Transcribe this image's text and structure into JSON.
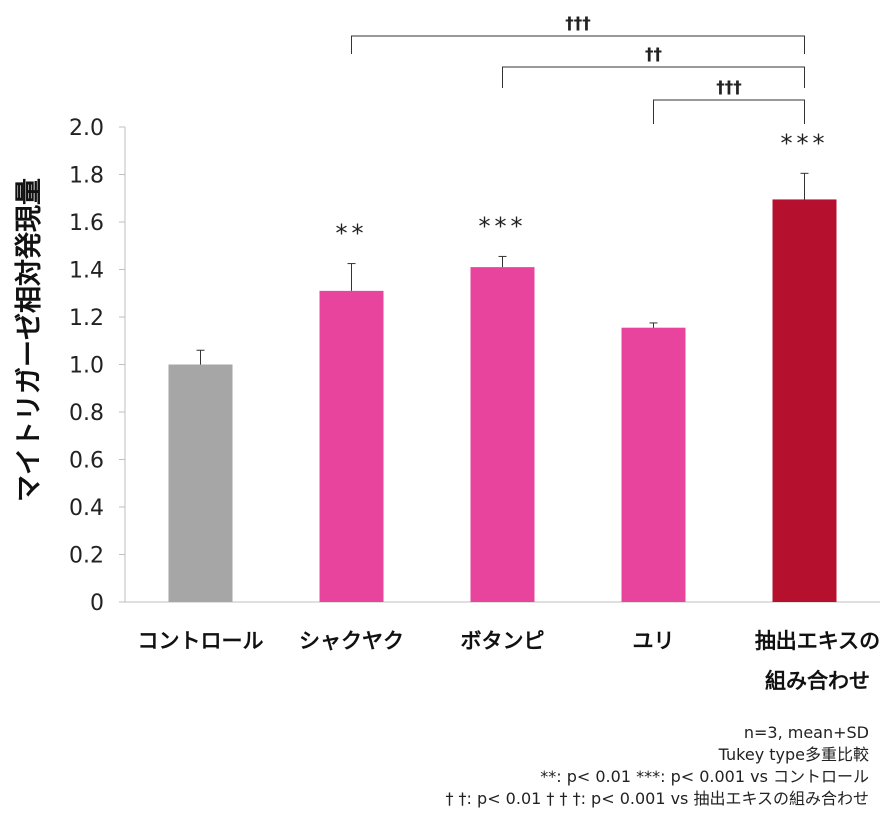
{
  "chart_data": {
    "type": "bar",
    "ylabel": "マイトリガーゼ相対発現量",
    "ylim": [
      0,
      2.0
    ],
    "yticks": [
      "0",
      "0.2",
      "0.4",
      "0.6",
      "0.8",
      "1.0",
      "1.2",
      "1.4",
      "1.6",
      "1.8",
      "2.0"
    ],
    "categories": [
      {
        "lines": [
          "コントロール"
        ]
      },
      {
        "lines": [
          "シャクヤク"
        ]
      },
      {
        "lines": [
          "ボタンピ"
        ]
      },
      {
        "lines": [
          "ユリ"
        ]
      },
      {
        "lines": [
          "抽出エキスの",
          "組み合わせ"
        ]
      }
    ],
    "values": [
      1.0,
      1.31,
      1.41,
      1.155,
      1.695
    ],
    "errors": [
      0.06,
      0.115,
      0.045,
      0.02,
      0.11
    ],
    "colors": [
      "#a6a6a6",
      "#e8449d",
      "#e8449d",
      "#e8449d",
      "#b5102e"
    ],
    "significance": [
      "",
      "**",
      "***",
      "",
      "***"
    ],
    "brackets": [
      {
        "from": 1,
        "to": 4,
        "label": "†††"
      },
      {
        "from": 2,
        "to": 4,
        "label": "††"
      },
      {
        "from": 3,
        "to": 4,
        "label": "†††"
      }
    ],
    "grid": false,
    "legend": "none"
  },
  "notes": [
    "n=3, mean+SD",
    "Tukey type多重比較",
    "**: p< 0.01  ***: p< 0.001 vs コントロール",
    "† †: p< 0.01  † † †: p< 0.001 vs 抽出エキスの組み合わせ"
  ]
}
